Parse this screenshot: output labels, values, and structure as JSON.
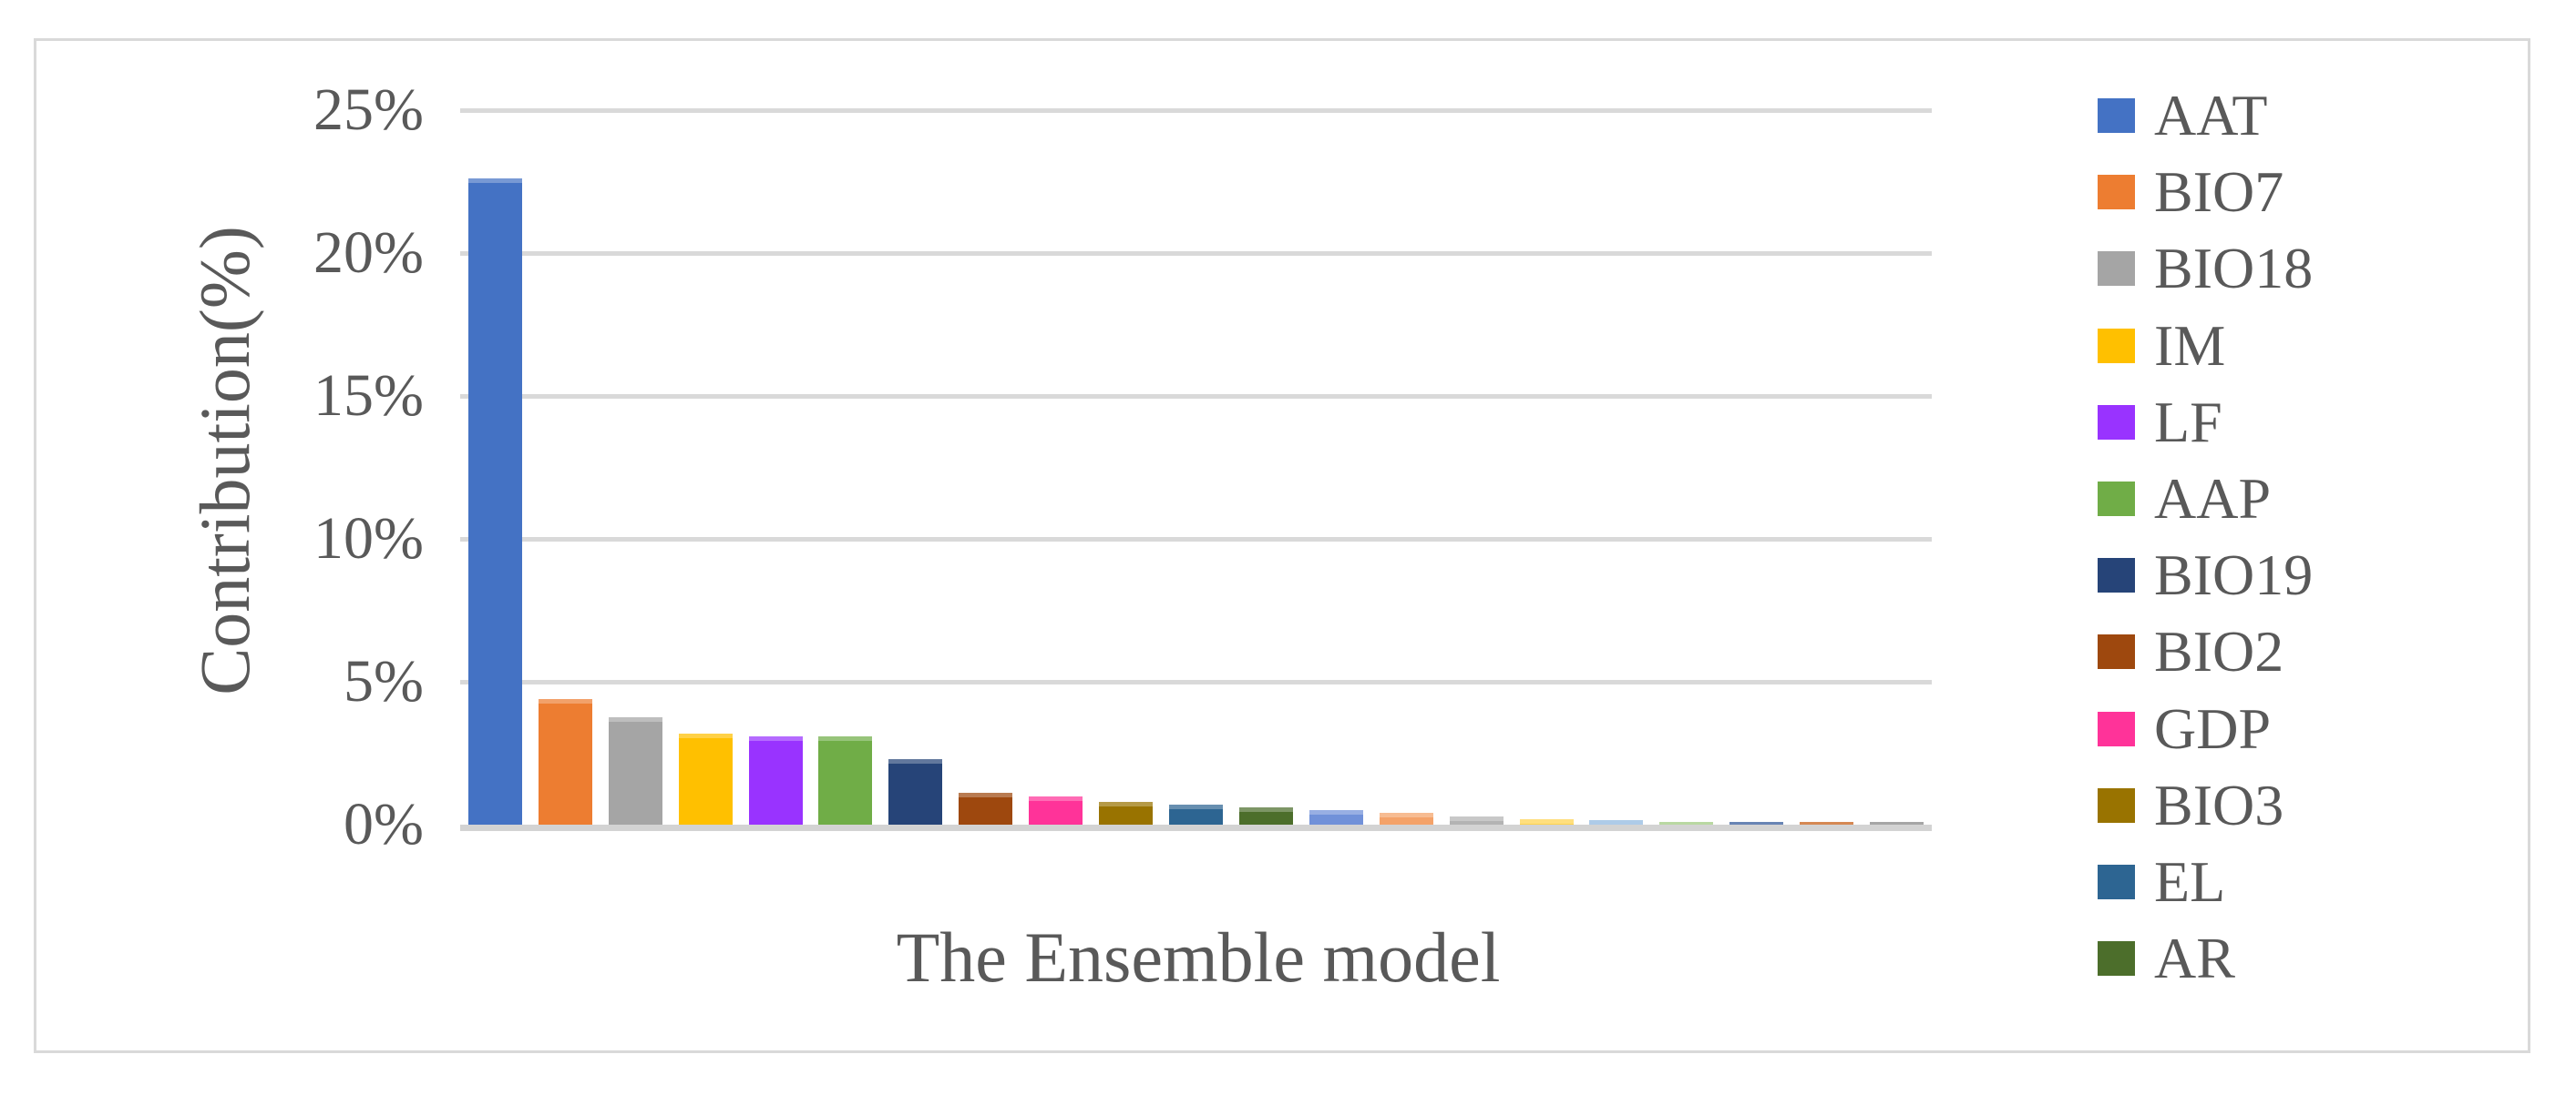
{
  "colors": {
    "background": "#ffffff",
    "frame_border": "#d9d9d9",
    "gridline": "#d9d9d9",
    "axis_line": "#d3d3d3",
    "text": "#595959"
  },
  "chart_data": {
    "type": "bar",
    "title": "",
    "xlabel": "The Ensemble model",
    "ylabel": "Contribution(%)",
    "ylim": [
      0,
      25
    ],
    "grid": true,
    "legend_position": "right",
    "yticks": [
      {
        "label": "25%",
        "value": 25
      },
      {
        "label": "20%",
        "value": 20
      },
      {
        "label": "15%",
        "value": 15
      },
      {
        "label": "10%",
        "value": 10
      },
      {
        "label": "5%",
        "value": 5
      },
      {
        "label": "0%",
        "value": 0
      }
    ],
    "series": [
      {
        "label": "AAT",
        "value": 22.6,
        "color": "#4472c4",
        "in_legend": true
      },
      {
        "label": "BIO7",
        "value": 4.4,
        "color": "#ed7d31",
        "in_legend": true
      },
      {
        "label": "BIO18",
        "value": 3.75,
        "color": "#a5a5a5",
        "in_legend": true
      },
      {
        "label": "IM",
        "value": 3.2,
        "color": "#ffc000",
        "in_legend": true
      },
      {
        "label": "LF",
        "value": 3.1,
        "color": "#9933ff",
        "in_legend": true
      },
      {
        "label": "AAP",
        "value": 3.1,
        "color": "#70ad47",
        "in_legend": true
      },
      {
        "label": "BIO19",
        "value": 2.3,
        "color": "#264478",
        "in_legend": true
      },
      {
        "label": "BIO2",
        "value": 1.1,
        "color": "#9e480e",
        "in_legend": true
      },
      {
        "label": "GDP",
        "value": 1.0,
        "color": "#ff3399",
        "in_legend": true
      },
      {
        "label": "BIO3",
        "value": 0.8,
        "color": "#997300",
        "in_legend": true
      },
      {
        "label": "EL",
        "value": 0.7,
        "color": "#2d6592",
        "in_legend": true
      },
      {
        "label": "AR",
        "value": 0.6,
        "color": "#4c6e2b",
        "in_legend": true
      },
      {
        "label": "",
        "value": 0.5,
        "color": "#7191d9",
        "in_legend": false
      },
      {
        "label": "",
        "value": 0.4,
        "color": "#f4a269",
        "in_legend": false
      },
      {
        "label": "",
        "value": 0.3,
        "color": "#b3b3b3",
        "in_legend": false
      },
      {
        "label": "",
        "value": 0.2,
        "color": "#ffd34d",
        "in_legend": false
      },
      {
        "label": "",
        "value": 0.17,
        "color": "#8fb8e0",
        "in_legend": false
      },
      {
        "label": "",
        "value": 0.09,
        "color": "#9fca7f",
        "in_legend": false
      },
      {
        "label": "",
        "value": 0.1,
        "color": "#2f5597",
        "in_legend": false
      },
      {
        "label": "",
        "value": 0.1,
        "color": "#c55a11",
        "in_legend": false
      },
      {
        "label": "",
        "value": 0.08,
        "color": "#848484",
        "in_legend": false
      }
    ]
  }
}
